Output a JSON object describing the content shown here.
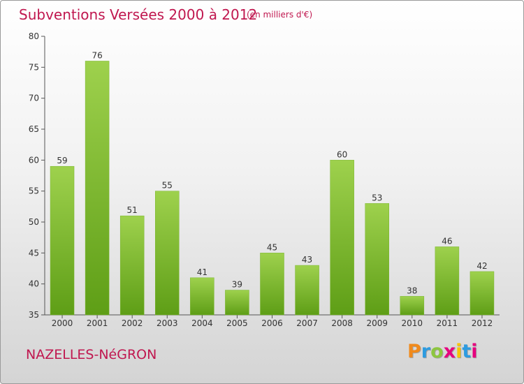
{
  "header": {
    "title": "Subventions Versées 2000 à 2012",
    "subtitle": "(en milliers d'€)"
  },
  "footer": {
    "town": "NAZELLES-NéGRON",
    "logo_letters": [
      "P",
      "r",
      "o",
      "x",
      "i",
      "t",
      "i"
    ],
    "logo_colors": [
      "#f08a1c",
      "#2d9be0",
      "#8dc63f",
      "#e6007e",
      "#f7c400",
      "#2d9be0",
      "#e6007e"
    ]
  },
  "chart_data": {
    "type": "bar",
    "categories": [
      "2000",
      "2001",
      "2002",
      "2003",
      "2004",
      "2005",
      "2006",
      "2007",
      "2008",
      "2009",
      "2010",
      "2011",
      "2012"
    ],
    "values": [
      59,
      76,
      51,
      55,
      41,
      39,
      45,
      43,
      60,
      53,
      38,
      46,
      42
    ],
    "ylim": [
      35,
      80
    ],
    "yticks": [
      35,
      40,
      45,
      50,
      55,
      60,
      65,
      70,
      75,
      80
    ],
    "grid": false,
    "bar_color_top": "#9ed14d",
    "bar_color_bottom": "#5e9e16"
  }
}
